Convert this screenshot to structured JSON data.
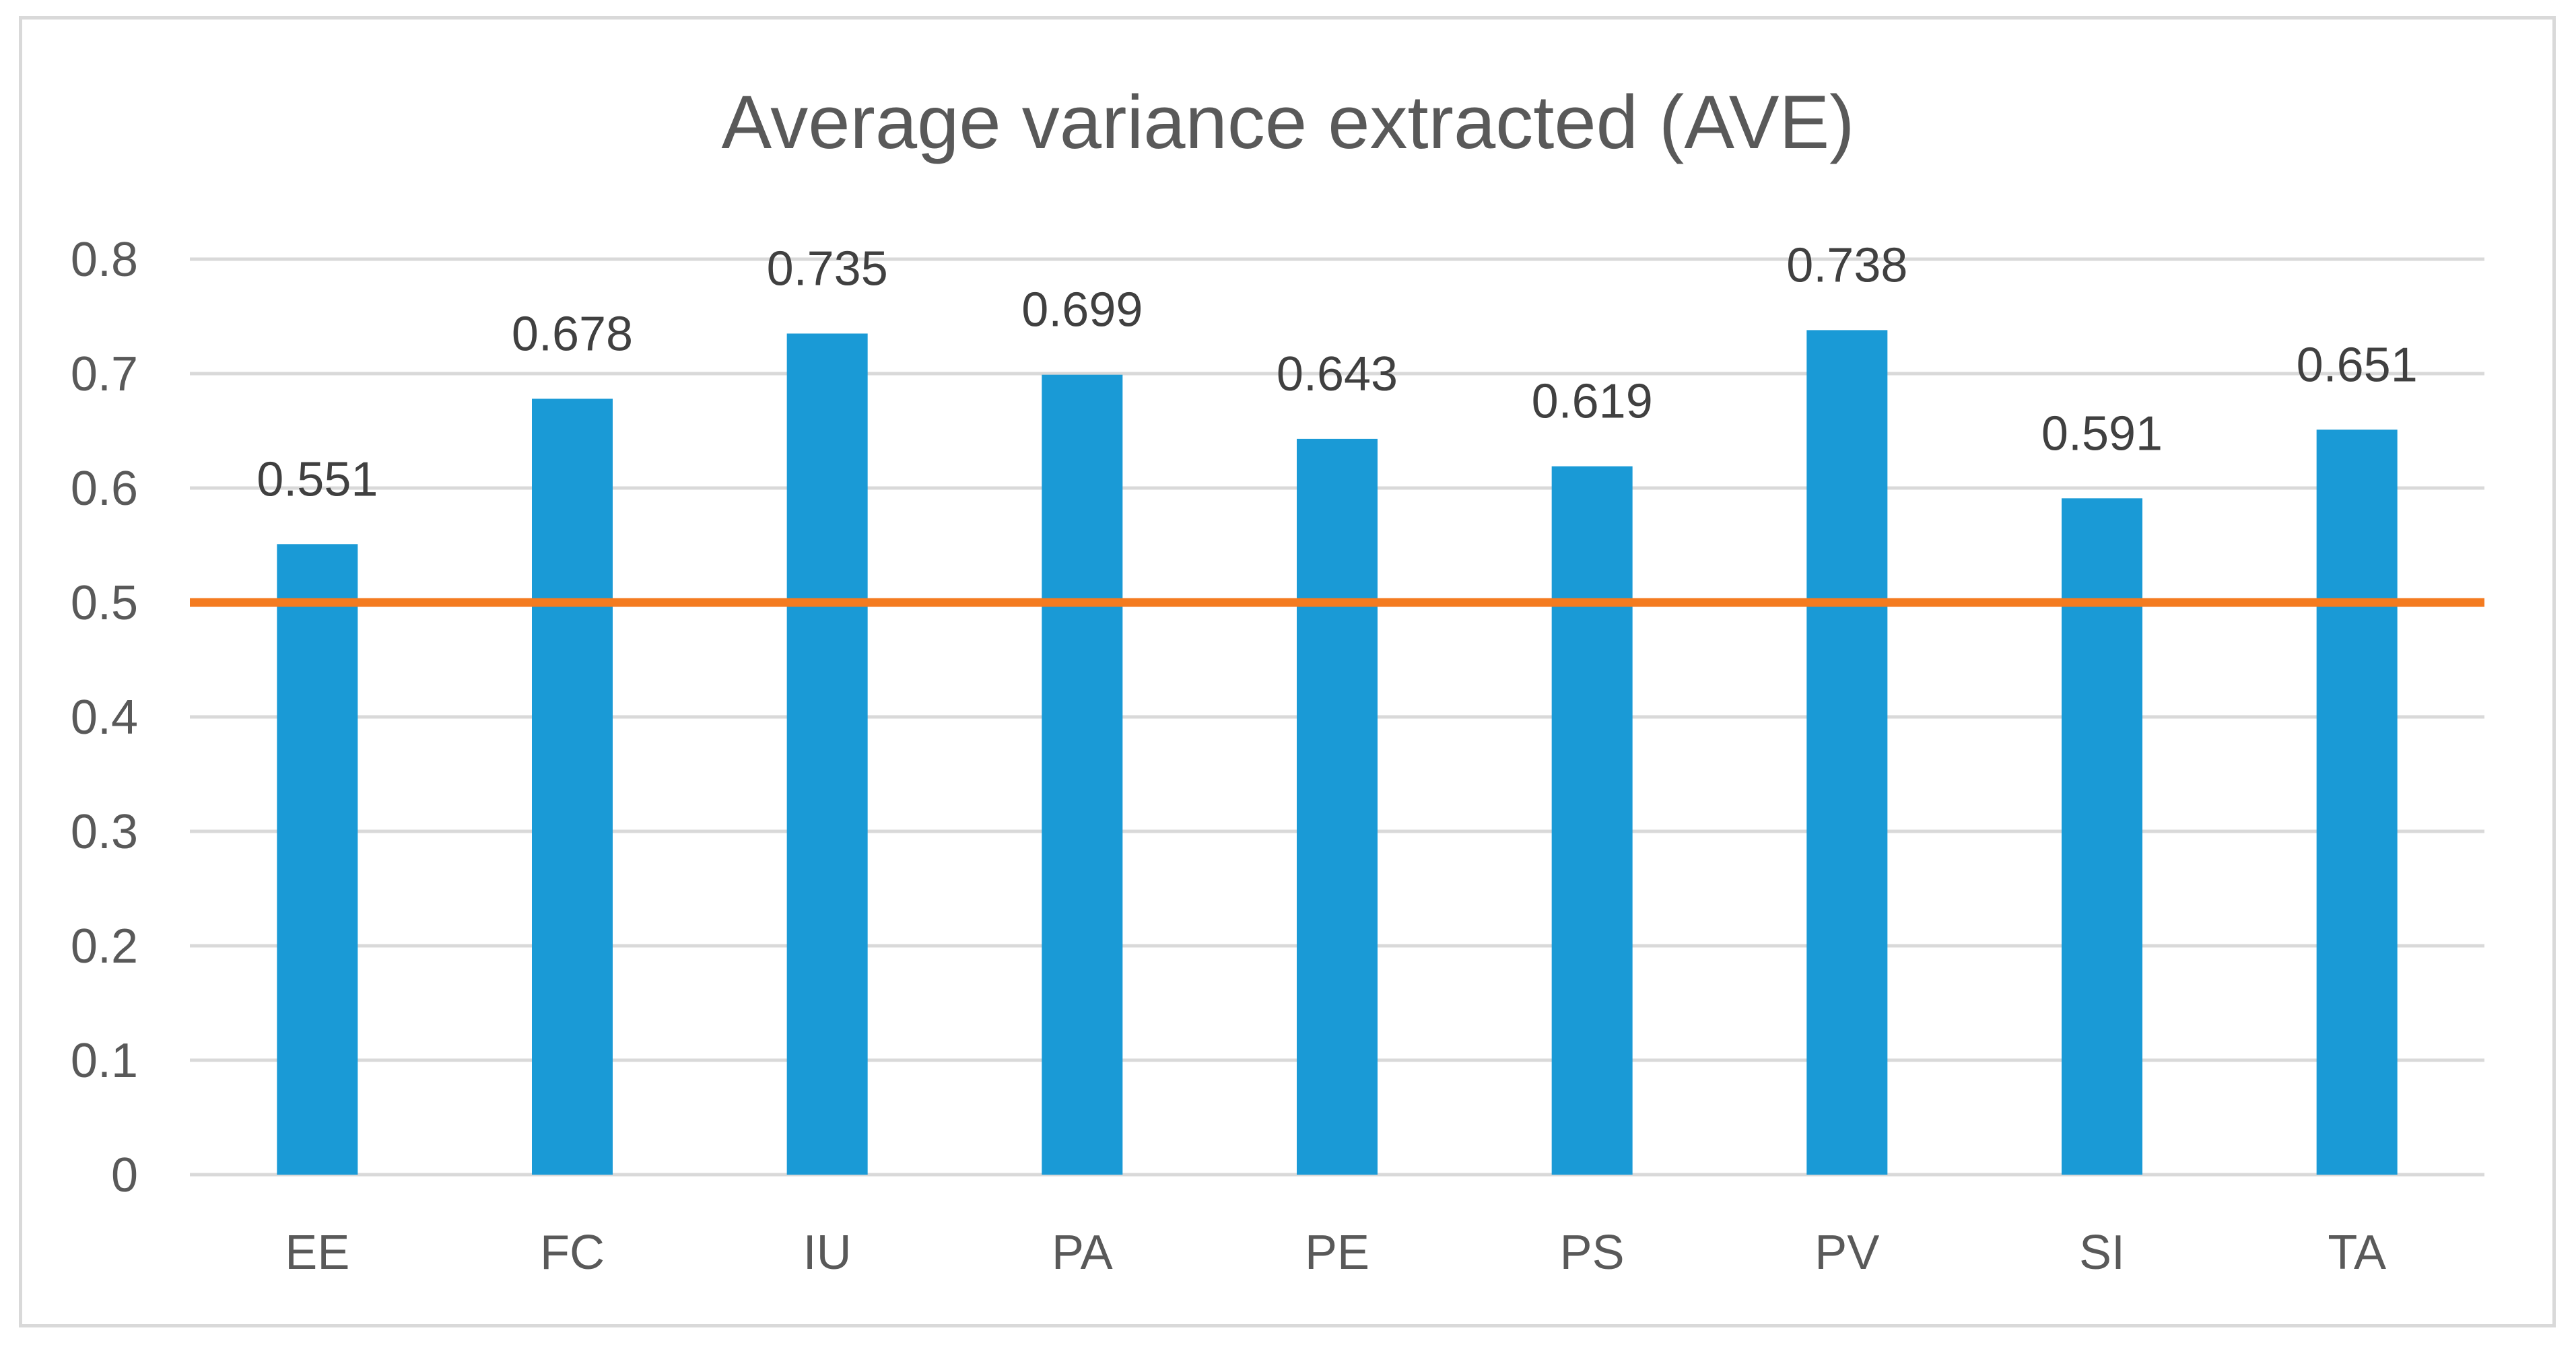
{
  "chart_data": {
    "type": "bar",
    "title": "Average variance extracted (AVE)",
    "categories": [
      "EE",
      "FC",
      "IU",
      "PA",
      "PE",
      "PS",
      "PV",
      "SI",
      "TA"
    ],
    "values": [
      0.551,
      0.678,
      0.735,
      0.699,
      0.643,
      0.619,
      0.738,
      0.591,
      0.651
    ],
    "data_labels": [
      "0.551",
      "0.678",
      "0.735",
      "0.699",
      "0.643",
      "0.619",
      "0.738",
      "0.591",
      "0.651"
    ],
    "xlabel": "",
    "ylabel": "",
    "ylim": [
      0,
      0.8
    ],
    "yticks": [
      0,
      0.1,
      0.2,
      0.3,
      0.4,
      0.5,
      0.6,
      0.7,
      0.8
    ],
    "ytick_labels": [
      "0",
      "0.1",
      "0.2",
      "0.3",
      "0.4",
      "0.5",
      "0.6",
      "0.7",
      "0.8"
    ],
    "threshold": 0.5,
    "grid": true,
    "legend": "none",
    "colors": {
      "bar": "#1a9ad6",
      "threshold_line": "#f47b20",
      "grid": "#d9d9d9",
      "axis": "#d9d9d9"
    }
  }
}
